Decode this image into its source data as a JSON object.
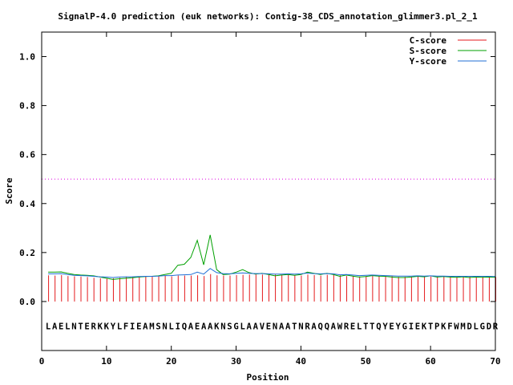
{
  "chart_data": {
    "type": "line",
    "title": "SignalP-4.0 prediction (euk networks): Contig-38_CDS_annotation_glimmer3.pl_2_1",
    "xlabel": "Position",
    "ylabel": "Score",
    "xlim": [
      0,
      70
    ],
    "ylim": [
      -0.2,
      1.1
    ],
    "xticks": [
      0,
      10,
      20,
      30,
      40,
      50,
      60,
      70
    ],
    "yticks": [
      0.0,
      0.2,
      0.4,
      0.6,
      0.8,
      1.0
    ],
    "ytick_labels": [
      "0.0",
      "0.2",
      "0.4",
      "0.6",
      "0.8",
      "1.0"
    ],
    "threshold": 0.5,
    "legend_position": "top-right",
    "sequence": "LAELNTERKKYLFIEAMSNLIQAEAAKNSGLAAVENAATNRAQQAWRELTTQYEYGIEKTPKFWMDLGDR",
    "positions": [
      1,
      2,
      3,
      4,
      5,
      6,
      7,
      8,
      9,
      10,
      11,
      12,
      13,
      14,
      15,
      16,
      17,
      18,
      19,
      20,
      21,
      22,
      23,
      24,
      25,
      26,
      27,
      28,
      29,
      30,
      31,
      32,
      33,
      34,
      35,
      36,
      37,
      38,
      39,
      40,
      41,
      42,
      43,
      44,
      45,
      46,
      47,
      48,
      49,
      50,
      51,
      52,
      53,
      54,
      55,
      56,
      57,
      58,
      59,
      60,
      61,
      62,
      63,
      64,
      65,
      66,
      67,
      68,
      69,
      70
    ],
    "series": [
      {
        "name": "C-score",
        "color": "#e41a1c",
        "style": "impulse",
        "values": [
          0.107,
          0.106,
          0.108,
          0.104,
          0.103,
          0.102,
          0.1,
          0.097,
          0.095,
          0.093,
          0.095,
          0.097,
          0.101,
          0.102,
          0.103,
          0.103,
          0.102,
          0.104,
          0.105,
          0.103,
          0.106,
          0.106,
          0.106,
          0.107,
          0.104,
          0.112,
          0.107,
          0.106,
          0.106,
          0.108,
          0.109,
          0.11,
          0.11,
          0.11,
          0.109,
          0.11,
          0.108,
          0.109,
          0.107,
          0.106,
          0.11,
          0.108,
          0.106,
          0.109,
          0.108,
          0.107,
          0.104,
          0.103,
          0.102,
          0.104,
          0.104,
          0.103,
          0.104,
          0.104,
          0.101,
          0.101,
          0.101,
          0.102,
          0.102,
          0.102,
          0.102,
          0.101,
          0.101,
          0.101,
          0.101,
          0.102,
          0.101,
          0.101,
          0.1,
          0.1
        ]
      },
      {
        "name": "S-score",
        "color": "#00a000",
        "style": "line",
        "values": [
          0.12,
          0.12,
          0.121,
          0.115,
          0.11,
          0.108,
          0.107,
          0.105,
          0.1,
          0.095,
          0.09,
          0.093,
          0.095,
          0.097,
          0.1,
          0.102,
          0.103,
          0.105,
          0.11,
          0.115,
          0.148,
          0.152,
          0.18,
          0.25,
          0.15,
          0.272,
          0.13,
          0.11,
          0.112,
          0.12,
          0.13,
          0.118,
          0.112,
          0.115,
          0.11,
          0.105,
          0.108,
          0.11,
          0.107,
          0.11,
          0.12,
          0.115,
          0.11,
          0.115,
          0.11,
          0.103,
          0.108,
          0.104,
          0.1,
          0.102,
          0.106,
          0.104,
          0.103,
          0.1,
          0.098,
          0.098,
          0.1,
          0.103,
          0.101,
          0.105,
          0.1,
          0.102,
          0.1,
          0.099,
          0.101,
          0.098,
          0.1,
          0.099,
          0.1,
          0.099
        ]
      },
      {
        "name": "Y-score",
        "color": "#1f6fd6",
        "style": "line",
        "values": [
          0.113,
          0.113,
          0.114,
          0.11,
          0.107,
          0.106,
          0.105,
          0.103,
          0.101,
          0.1,
          0.098,
          0.1,
          0.101,
          0.101,
          0.102,
          0.103,
          0.103,
          0.104,
          0.106,
          0.106,
          0.108,
          0.109,
          0.11,
          0.12,
          0.112,
          0.135,
          0.118,
          0.114,
          0.113,
          0.115,
          0.117,
          0.115,
          0.114,
          0.114,
          0.113,
          0.112,
          0.112,
          0.113,
          0.112,
          0.113,
          0.116,
          0.114,
          0.113,
          0.114,
          0.113,
          0.109,
          0.11,
          0.108,
          0.106,
          0.107,
          0.108,
          0.107,
          0.106,
          0.105,
          0.104,
          0.104,
          0.104,
          0.105,
          0.104,
          0.105,
          0.104,
          0.104,
          0.103,
          0.103,
          0.103,
          0.103,
          0.103,
          0.103,
          0.103,
          0.102
        ]
      }
    ]
  }
}
